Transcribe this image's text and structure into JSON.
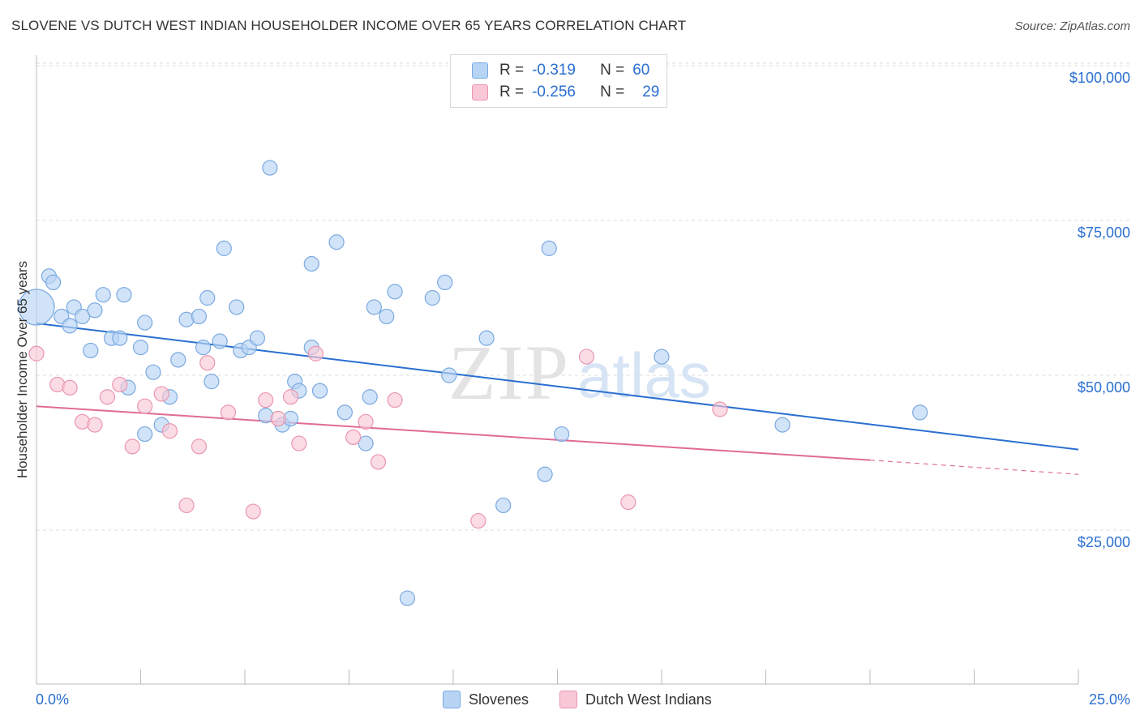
{
  "title": "SLOVENE VS DUTCH WEST INDIAN HOUSEHOLDER INCOME OVER 65 YEARS CORRELATION CHART",
  "source": "Source: ZipAtlas.com",
  "watermark": {
    "zip": "ZIP",
    "atlas": "atlas"
  },
  "legend": {
    "r_label": "R =",
    "n_label": "N =",
    "rows": [
      {
        "r": "-0.319",
        "n": "60",
        "color": "#b8d4f4",
        "border": "#7aa9e0"
      },
      {
        "r": "-0.256",
        "n": "29",
        "color": "#f9c8d6",
        "border": "#e996b0"
      }
    ]
  },
  "chart_data": {
    "type": "scatter",
    "title": "SLOVENE VS DUTCH WEST INDIAN HOUSEHOLDER INCOME OVER 65 YEARS CORRELATION CHART",
    "xlabel": "",
    "ylabel": "Householder Income Over 65 years",
    "xlim": [
      0,
      25
    ],
    "ylim": [
      0,
      105000
    ],
    "x_tick_labels": [
      "0.0%",
      "25.0%"
    ],
    "y_ticks": [
      25000,
      50000,
      75000,
      100000
    ],
    "y_tick_labels": [
      "$25,000",
      "$50,000",
      "$75,000",
      "$100,000"
    ],
    "grid": "horizontal dashed",
    "legend_position": "top-center and bottom",
    "series": [
      {
        "name": "Slovenes",
        "color": "#7aa9e0",
        "fill": "#b8d4f4",
        "line_color": "#2a6fd1",
        "trend": {
          "x": [
            0,
            25
          ],
          "y": [
            58400,
            38000
          ]
        },
        "points": [
          {
            "x": 0.0,
            "y": 61000,
            "big": true
          },
          {
            "x": 0.3,
            "y": 66000
          },
          {
            "x": 0.4,
            "y": 65000
          },
          {
            "x": 0.6,
            "y": 59500
          },
          {
            "x": 0.8,
            "y": 58000
          },
          {
            "x": 0.9,
            "y": 61000
          },
          {
            "x": 1.1,
            "y": 59500
          },
          {
            "x": 1.3,
            "y": 54000
          },
          {
            "x": 1.4,
            "y": 60500
          },
          {
            "x": 1.6,
            "y": 63000
          },
          {
            "x": 1.8,
            "y": 56000
          },
          {
            "x": 2.0,
            "y": 56000
          },
          {
            "x": 2.1,
            "y": 63000
          },
          {
            "x": 2.2,
            "y": 48000
          },
          {
            "x": 2.5,
            "y": 54500
          },
          {
            "x": 2.6,
            "y": 40500
          },
          {
            "x": 2.6,
            "y": 58500
          },
          {
            "x": 2.8,
            "y": 50500
          },
          {
            "x": 3.0,
            "y": 42000
          },
          {
            "x": 3.2,
            "y": 46500
          },
          {
            "x": 3.4,
            "y": 52500
          },
          {
            "x": 3.6,
            "y": 59000
          },
          {
            "x": 3.9,
            "y": 59500
          },
          {
            "x": 4.0,
            "y": 54500
          },
          {
            "x": 4.1,
            "y": 62500
          },
          {
            "x": 4.2,
            "y": 49000
          },
          {
            "x": 4.4,
            "y": 55500
          },
          {
            "x": 4.5,
            "y": 70500
          },
          {
            "x": 4.8,
            "y": 61000
          },
          {
            "x": 4.9,
            "y": 54000
          },
          {
            "x": 5.1,
            "y": 54500
          },
          {
            "x": 5.3,
            "y": 56000
          },
          {
            "x": 5.5,
            "y": 43500
          },
          {
            "x": 5.6,
            "y": 83500
          },
          {
            "x": 5.9,
            "y": 42000
          },
          {
            "x": 6.1,
            "y": 43000
          },
          {
            "x": 6.2,
            "y": 49000
          },
          {
            "x": 6.3,
            "y": 47500
          },
          {
            "x": 6.6,
            "y": 68000
          },
          {
            "x": 6.6,
            "y": 54500
          },
          {
            "x": 6.8,
            "y": 47500
          },
          {
            "x": 7.2,
            "y": 71500
          },
          {
            "x": 7.4,
            "y": 44000
          },
          {
            "x": 7.9,
            "y": 39000
          },
          {
            "x": 8.0,
            "y": 46500
          },
          {
            "x": 8.1,
            "y": 61000
          },
          {
            "x": 8.4,
            "y": 59500
          },
          {
            "x": 8.6,
            "y": 63500
          },
          {
            "x": 8.9,
            "y": 14000
          },
          {
            "x": 9.5,
            "y": 62500
          },
          {
            "x": 9.8,
            "y": 65000
          },
          {
            "x": 9.9,
            "y": 50000
          },
          {
            "x": 10.8,
            "y": 56000
          },
          {
            "x": 11.2,
            "y": 29000
          },
          {
            "x": 12.2,
            "y": 34000
          },
          {
            "x": 12.3,
            "y": 70500
          },
          {
            "x": 12.6,
            "y": 40500
          },
          {
            "x": 15.0,
            "y": 53000
          },
          {
            "x": 17.9,
            "y": 42000
          },
          {
            "x": 21.2,
            "y": 44000
          }
        ]
      },
      {
        "name": "Dutch West Indians",
        "color": "#e996b0",
        "fill": "#f9c8d6",
        "line_color": "#e06b95",
        "trend": {
          "x": [
            0,
            20
          ],
          "y": [
            45000,
            36300
          ]
        },
        "trend_dashed": {
          "x": [
            20,
            25
          ],
          "y": [
            36300,
            34000
          ]
        },
        "points": [
          {
            "x": 0.0,
            "y": 53500
          },
          {
            "x": 0.5,
            "y": 48500
          },
          {
            "x": 0.8,
            "y": 48000
          },
          {
            "x": 1.1,
            "y": 42500
          },
          {
            "x": 1.4,
            "y": 42000
          },
          {
            "x": 1.7,
            "y": 46500
          },
          {
            "x": 2.0,
            "y": 48500
          },
          {
            "x": 2.3,
            "y": 38500
          },
          {
            "x": 2.6,
            "y": 45000
          },
          {
            "x": 3.0,
            "y": 47000
          },
          {
            "x": 3.2,
            "y": 41000
          },
          {
            "x": 3.6,
            "y": 29000
          },
          {
            "x": 3.9,
            "y": 38500
          },
          {
            "x": 4.1,
            "y": 52000
          },
          {
            "x": 4.6,
            "y": 44000
          },
          {
            "x": 5.2,
            "y": 28000
          },
          {
            "x": 5.5,
            "y": 46000
          },
          {
            "x": 5.8,
            "y": 43000
          },
          {
            "x": 6.1,
            "y": 46500
          },
          {
            "x": 6.3,
            "y": 39000
          },
          {
            "x": 6.7,
            "y": 53500
          },
          {
            "x": 7.6,
            "y": 40000
          },
          {
            "x": 7.9,
            "y": 42500
          },
          {
            "x": 8.2,
            "y": 36000
          },
          {
            "x": 8.6,
            "y": 46000
          },
          {
            "x": 10.6,
            "y": 26500
          },
          {
            "x": 13.2,
            "y": 53000
          },
          {
            "x": 14.2,
            "y": 29500
          },
          {
            "x": 16.4,
            "y": 44500
          }
        ]
      }
    ]
  }
}
